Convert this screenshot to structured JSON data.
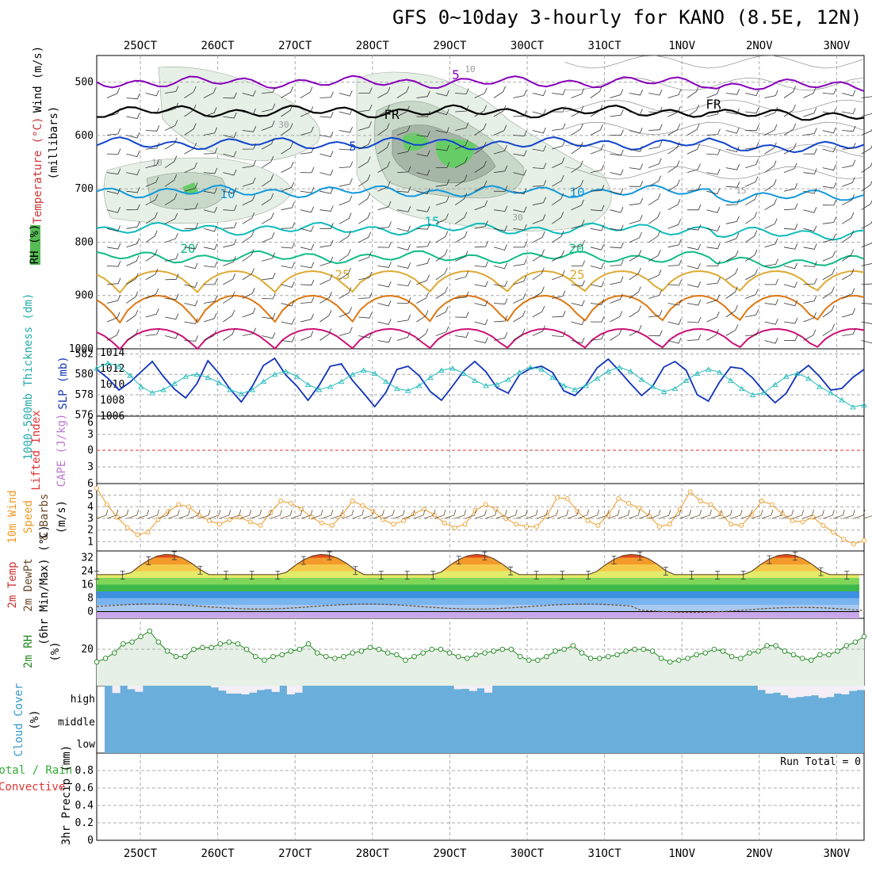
{
  "title": "GFS 0~10day 3-hourly for KANO (8.5E, 12N)",
  "dates": [
    "25OCT",
    "26OCT",
    "27OCT",
    "28OCT",
    "29OCT",
    "30OCT",
    "31OCT",
    "1NOV",
    "2NOV",
    "3NOV"
  ],
  "colors": {
    "grid": "#aaaaaa",
    "rh_light": "#e6f0e6",
    "rh_mid": "#c9d9c9",
    "rh_dark": "#a6b6a6",
    "rh_bright": "#66cc66",
    "t_minus5": "#8800bb",
    "t_freeze": "#000000",
    "t5": "#1144cc",
    "t10": "#1199dd",
    "t15": "#11bbbb",
    "t20": "#11bb88",
    "t25": "#ddaa33",
    "t30": "#dd7711",
    "t35": "#cc1177",
    "slp": "#1133bb",
    "thickness": "#22bbbb",
    "wind": "#ee9922",
    "barb": "#6b4a2a",
    "rh2m": "#228822",
    "rh2m_fill": "#e6f0e6",
    "cloud": "#6aaedb",
    "cloud_gap": "#f4eef6"
  },
  "chart_data": [
    {
      "type": "contour",
      "id": "upper",
      "ylabel": "(millibars)",
      "side_labels": [
        "Wind (m/s)",
        "Temperature (°C)",
        "RH (%)"
      ],
      "yticks": [
        500,
        600,
        700,
        800,
        900,
        1000
      ],
      "ylim": [
        450,
        1000
      ],
      "isotherm_labels": [
        "5",
        "FR",
        "FR",
        "5",
        "10",
        "10",
        "15",
        "20",
        "20",
        "25",
        "25",
        "10",
        "30",
        "30",
        "10",
        "15"
      ],
      "isotherms": [
        {
          "value": -5,
          "label": "5",
          "color_key": "t_minus5",
          "pressure": 500
        },
        {
          "value": 0,
          "label": "FR",
          "color_key": "t_freeze",
          "pressure": 555
        },
        {
          "value": 5,
          "label": "5",
          "color_key": "t5",
          "pressure": 615
        },
        {
          "value": 10,
          "label": "10",
          "color_key": "t10",
          "pressure": 705
        },
        {
          "value": 15,
          "label": "15",
          "color_key": "t15",
          "pressure": 775
        },
        {
          "value": 20,
          "label": "20",
          "color_key": "t20",
          "pressure": 828
        },
        {
          "value": 25,
          "label": "25",
          "color_key": "t25",
          "pressure": 878
        },
        {
          "value": 30,
          "label": "",
          "color_key": "t30",
          "pressure": 930
        },
        {
          "value": 35,
          "label": "",
          "color_key": "t35",
          "pressure": 985
        }
      ]
    },
    {
      "type": "line",
      "id": "slp_thickness",
      "side_labels": [
        "1000-500mb Thickness (dm)",
        "SLP (mb)"
      ],
      "left_ticks": [
        576,
        578,
        580,
        582
      ],
      "right_ticks": [
        1006,
        1008,
        1010,
        1012,
        1014
      ],
      "series": [
        {
          "name": "SLP (mb)",
          "color_key": "slp",
          "ylim": [
            1006,
            1014.5
          ],
          "values": [
            1011.9,
            1010.8,
            1009.3,
            1010.3,
            1011.6,
            1012.9,
            1011.0,
            1009.4,
            1008.3,
            1010.1,
            1013.0,
            1011.4,
            1009.4,
            1007.8,
            1009.8,
            1012.4,
            1013.3,
            1011.2,
            1009.8,
            1008.0,
            1009.9,
            1012.3,
            1012.6,
            1010.5,
            1008.9,
            1007.2,
            1009.0,
            1011.9,
            1012.3,
            1011.1,
            1009.1,
            1008.0,
            1009.8,
            1011.7,
            1012.9,
            1011.6,
            1009.6,
            1008.9,
            1011.2,
            1012.0,
            1012.3,
            1011.5,
            1009.2,
            1008.6,
            1010.0,
            1012.1,
            1013.2,
            1011.7,
            1010.1,
            1008.6,
            1009.8,
            1012.2,
            1012.9,
            1011.8,
            1008.7,
            1007.9,
            1010.3,
            1012.2,
            1012.0,
            1010.8,
            1009.1,
            1007.7,
            1008.9,
            1011.3,
            1012.4,
            1011.0,
            1009.3,
            1009.5,
            1010.9,
            1011.9
          ]
        },
        {
          "name": "1000-500mb Thickness (dm)",
          "color_key": "thickness",
          "ylim": [
            575.9,
            582.5
          ],
          "values": [
            580.6,
            581.1,
            580.8,
            579.9,
            578.8,
            578.2,
            578.5,
            579.1,
            579.8,
            580.0,
            579.7,
            579.2,
            578.5,
            578.1,
            578.5,
            579.3,
            580.0,
            580.3,
            579.8,
            579.0,
            578.5,
            578.8,
            579.3,
            580.0,
            580.4,
            580.1,
            579.3,
            578.6,
            578.4,
            578.9,
            579.7,
            580.4,
            580.6,
            580.1,
            579.4,
            578.9,
            579.0,
            579.5,
            580.2,
            580.7,
            580.5,
            579.7,
            578.9,
            578.5,
            578.9,
            579.6,
            580.3,
            580.7,
            580.3,
            579.5,
            578.8,
            578.3,
            578.6,
            579.4,
            580.1,
            580.5,
            580.2,
            579.4,
            578.6,
            578.0,
            578.2,
            579.0,
            579.8,
            580.1,
            579.6,
            578.8,
            578.2,
            577.5,
            576.8,
            577.0
          ]
        }
      ]
    },
    {
      "type": "line",
      "id": "cape_li",
      "side_labels": [
        "Lifted Index",
        "CAPE (J/kg)"
      ],
      "left_ticks": [
        "6",
        "3",
        "0",
        "3",
        "6"
      ]
    },
    {
      "type": "line",
      "id": "wind10m",
      "side_labels": [
        "10m Wind",
        "Speed",
        "& Barbs",
        "(m/s)"
      ],
      "yticks": [
        1,
        2,
        3,
        4,
        5
      ],
      "ylim": [
        0.2,
        6
      ],
      "series": [
        {
          "name": "Speed",
          "color_key": "wind",
          "values": [
            5.6,
            4.2,
            3.1,
            2.2,
            1.6,
            1.8,
            2.9,
            3.6,
            4.2,
            4.0,
            3.3,
            2.8,
            2.5,
            2.9,
            3.1,
            2.7,
            2.4,
            3.5,
            4.5,
            4.3,
            3.8,
            3.1,
            2.6,
            2.4,
            3.3,
            4.5,
            4.1,
            3.6,
            2.9,
            2.5,
            2.8,
            3.4,
            3.8,
            3.3,
            2.6,
            2.2,
            2.5,
            3.7,
            4.2,
            3.8,
            3.0,
            2.5,
            2.3,
            2.3,
            3.2,
            4.8,
            4.7,
            3.6,
            2.8,
            2.4,
            3.3,
            4.7,
            4.3,
            3.9,
            3.2,
            2.3,
            2.5,
            3.8,
            5.3,
            4.5,
            4.2,
            3.4,
            2.5,
            2.4,
            3.3,
            4.5,
            4.2,
            3.4,
            2.8,
            2.7,
            3.1,
            2.4,
            1.8,
            1.2,
            0.8,
            1.1
          ]
        }
      ]
    },
    {
      "type": "area",
      "id": "temp2m",
      "side_labels": [
        "2m Temp",
        "2m DewPt",
        "(6hr Min/Max) (°C)"
      ],
      "yticks": [
        0,
        8,
        16,
        24,
        32
      ],
      "ylim": [
        -4,
        36
      ],
      "series": [
        {
          "name": "2m Temp",
          "color_key": "t30",
          "min": 22,
          "max": 34
        },
        {
          "name": "2m DewPt",
          "color_key": "barb",
          "approx": 3
        }
      ]
    },
    {
      "type": "area",
      "id": "rh2m",
      "side_labels": [
        "2m RH",
        "(%)"
      ],
      "yticks": [
        20
      ],
      "ylim": [
        0,
        37
      ],
      "series": [
        {
          "name": "2m RH",
          "color_key": "rh2m",
          "values": [
            13,
            15,
            18,
            23,
            24,
            27,
            30,
            24,
            19,
            16,
            16,
            20,
            21,
            21,
            23,
            24,
            23,
            20,
            16,
            14,
            16,
            17,
            19,
            20,
            23,
            18,
            16,
            15,
            16,
            18,
            19,
            21,
            20,
            18,
            17,
            14,
            16,
            18,
            20,
            20,
            18,
            16,
            15,
            17,
            18,
            19,
            20,
            20,
            16,
            14,
            14,
            16,
            19,
            20,
            22,
            18,
            15,
            15,
            16,
            17,
            19,
            20,
            20,
            19,
            15,
            13,
            14,
            15,
            17,
            18,
            20,
            19,
            16,
            15,
            18,
            19,
            22,
            22,
            19,
            17,
            15,
            14,
            17,
            17,
            19,
            22,
            24,
            27
          ]
        }
      ]
    },
    {
      "type": "bar",
      "id": "cloud",
      "side_labels": [
        "Cloud Cover",
        "(%)"
      ],
      "category_labels": [
        "high",
        "middle",
        "low"
      ],
      "high_cover": [
        100,
        58,
        100,
        80,
        65,
        100,
        100,
        100,
        100,
        100,
        100,
        100,
        100,
        100,
        90,
        72,
        55,
        55,
        50,
        60,
        75,
        80,
        64,
        100,
        50,
        60,
        100,
        100,
        100,
        100,
        100,
        100,
        100,
        100,
        100,
        100,
        100,
        100,
        100,
        100,
        100,
        100,
        100,
        100,
        100,
        100,
        80,
        82,
        70,
        85,
        60,
        100,
        100,
        100,
        100,
        100,
        100,
        100,
        100,
        100,
        100,
        100,
        100,
        100,
        100,
        100,
        100,
        100,
        100,
        100,
        100,
        100,
        100,
        100,
        100,
        100,
        100,
        100,
        100,
        100,
        100,
        100,
        100,
        100,
        100,
        100,
        75,
        55,
        60,
        45,
        30,
        35,
        40,
        45,
        30,
        35,
        55,
        50,
        70,
        75
      ]
    },
    {
      "type": "bar",
      "id": "precip",
      "side_labels": [
        "Total / Rain",
        "Convective",
        "3hr Precip (mm)"
      ],
      "yticks": [
        0,
        0.2,
        0.4,
        0.6,
        0.8
      ],
      "ylim": [
        0,
        1
      ],
      "run_total_label": "Run Total = 0",
      "values": []
    }
  ]
}
